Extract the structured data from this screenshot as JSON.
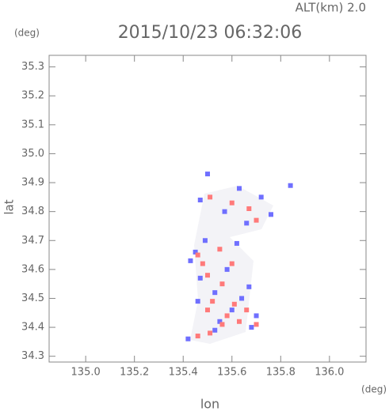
{
  "chart_data": {
    "type": "scatter",
    "annotation": "ALT(km) 2.0",
    "title": "2015/10/23 06:32:06",
    "y_unit": "(deg)",
    "x_unit": "(deg)",
    "xlabel": "lon",
    "ylabel": "lat",
    "xlim": [
      134.85,
      136.15
    ],
    "ylim": [
      34.28,
      35.34
    ],
    "xticks": [
      {
        "value": 135,
        "label": "135.0"
      },
      135.2,
      135.4,
      135.6,
      135.8,
      {
        "value": 136,
        "label": "136.0"
      }
    ],
    "yticks": [
      34.3,
      34.4,
      34.5,
      34.6,
      34.7,
      34.8,
      34.9,
      {
        "value": 35,
        "label": "35.0"
      },
      35.1,
      35.2,
      35.3
    ],
    "series": [
      {
        "color": "#6f6fff",
        "x": [
          135.5,
          135.47,
          135.63,
          135.72,
          135.76,
          135.66,
          135.45,
          135.62,
          135.43,
          135.58,
          135.47,
          135.53,
          135.64,
          135.6,
          135.7,
          135.46,
          135.55,
          135.68,
          135.42,
          135.53,
          135.84,
          135.49,
          135.67,
          135.57
        ],
        "y": [
          34.93,
          34.84,
          34.88,
          34.85,
          34.79,
          34.76,
          34.66,
          34.69,
          34.63,
          34.6,
          34.57,
          34.52,
          34.5,
          34.46,
          34.44,
          34.49,
          34.42,
          34.4,
          34.36,
          34.39,
          34.89,
          34.7,
          34.54,
          34.8
        ]
      },
      {
        "color": "#ff7a7a",
        "x": [
          135.51,
          135.6,
          135.67,
          135.7,
          135.46,
          135.55,
          135.6,
          135.5,
          135.56,
          135.52,
          135.61,
          135.66,
          135.5,
          135.56,
          135.63,
          135.7,
          135.46,
          135.51,
          135.58,
          135.48
        ],
        "y": [
          34.85,
          34.83,
          34.81,
          34.77,
          34.65,
          34.67,
          34.62,
          34.58,
          34.55,
          34.49,
          34.48,
          34.46,
          34.46,
          34.41,
          34.42,
          34.41,
          34.37,
          34.38,
          34.44,
          34.62
        ]
      }
    ]
  }
}
